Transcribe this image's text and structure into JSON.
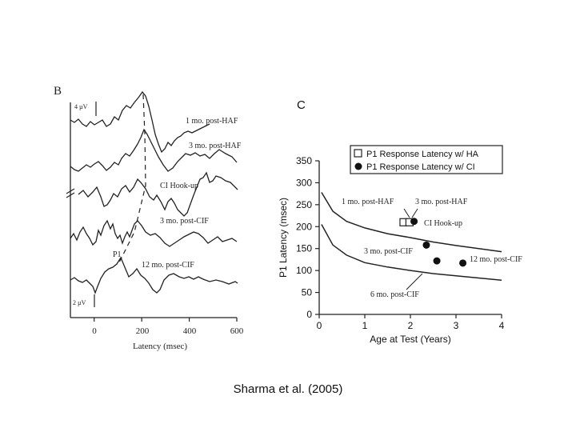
{
  "panel_b": {
    "letter": "B",
    "scale_top": "4 µV",
    "scale_bottom": "2 µV",
    "xlabel": "Latency (msec)",
    "ticks": [
      "0",
      "200",
      "400",
      "600"
    ],
    "p1_label": "P1",
    "trace_labels": [
      "1 mo. post-HAF",
      "3 mo. post-HAF",
      "CI Hook-up",
      "3 mo. post-CIF",
      "12 mo. post-CIF"
    ]
  },
  "panel_c": {
    "letter": "C"
  },
  "caption": "Sharma et al. (2005)",
  "chart_data": [
    {
      "type": "line",
      "panel": "B",
      "xlabel": "Latency (msec)",
      "xlim": [
        -100,
        600
      ],
      "xticks": [
        0,
        200,
        400,
        600
      ],
      "series": [
        {
          "name": "1 mo. post-HAF",
          "p1_latency_ms": 210
        },
        {
          "name": "3 mo. post-HAF",
          "p1_latency_ms": 205
        },
        {
          "name": "CI Hook-up",
          "p1_latency_ms": 205
        },
        {
          "name": "3 mo. post-CIF",
          "p1_latency_ms": 160
        },
        {
          "name": "12 mo. post-CIF",
          "p1_latency_ms": 115
        }
      ]
    },
    {
      "type": "scatter",
      "panel": "C",
      "xlabel": "Age at Test (Years)",
      "ylabel": "P1 Latency (msec)",
      "xlim": [
        0,
        4
      ],
      "ylim": [
        0,
        350
      ],
      "xticks": [
        0,
        1,
        2,
        3,
        4
      ],
      "yticks": [
        0,
        50,
        100,
        150,
        200,
        250,
        300,
        350
      ],
      "legend": {
        "position": "top-right",
        "items": [
          "P1 Response Latency w/ HA",
          "P1 Response Latency w/ CI"
        ]
      },
      "series": [
        {
          "name": "P1 Response Latency w/ HA",
          "marker": "open-square",
          "points": [
            {
              "x": 1.85,
              "y": 210,
              "label": "1 mo. post-HAF"
            },
            {
              "x": 1.98,
              "y": 210,
              "label": "3 mo. post-HAF"
            }
          ]
        },
        {
          "name": "P1 Response Latency w/ CI",
          "marker": "filled-circle",
          "points": [
            {
              "x": 2.08,
              "y": 212,
              "label": "CI Hook-up"
            },
            {
              "x": 2.35,
              "y": 158,
              "label": ""
            },
            {
              "x": 2.58,
              "y": 122,
              "label": "3 mo. post-CIF"
            },
            {
              "x": 3.15,
              "y": 117,
              "label": "12 mo. post-CIF"
            }
          ]
        }
      ],
      "curves": [
        {
          "points": [
            [
              0.05,
              278
            ],
            [
              0.3,
              235
            ],
            [
              0.6,
              212
            ],
            [
              1,
              197
            ],
            [
              1.5,
              184
            ],
            [
              2,
              175
            ],
            [
              2.5,
              165
            ],
            [
              3,
              157
            ],
            [
              3.5,
              150
            ],
            [
              4,
              143
            ]
          ]
        },
        {
          "points": [
            [
              0.05,
              205
            ],
            [
              0.3,
              158
            ],
            [
              0.6,
              135
            ],
            [
              1,
              118
            ],
            [
              1.5,
              108
            ],
            [
              2,
              100
            ],
            [
              2.5,
              93
            ],
            [
              3,
              88
            ],
            [
              3.5,
              83
            ],
            [
              4,
              78
            ]
          ]
        }
      ],
      "annotations": [
        "1 mo. post-HAF",
        "3 mo. post-HAF",
        "CI Hook-up",
        "3 mo. post-CIF",
        "12 mo. post-CIF",
        "6 mo. post-CIF"
      ]
    }
  ]
}
